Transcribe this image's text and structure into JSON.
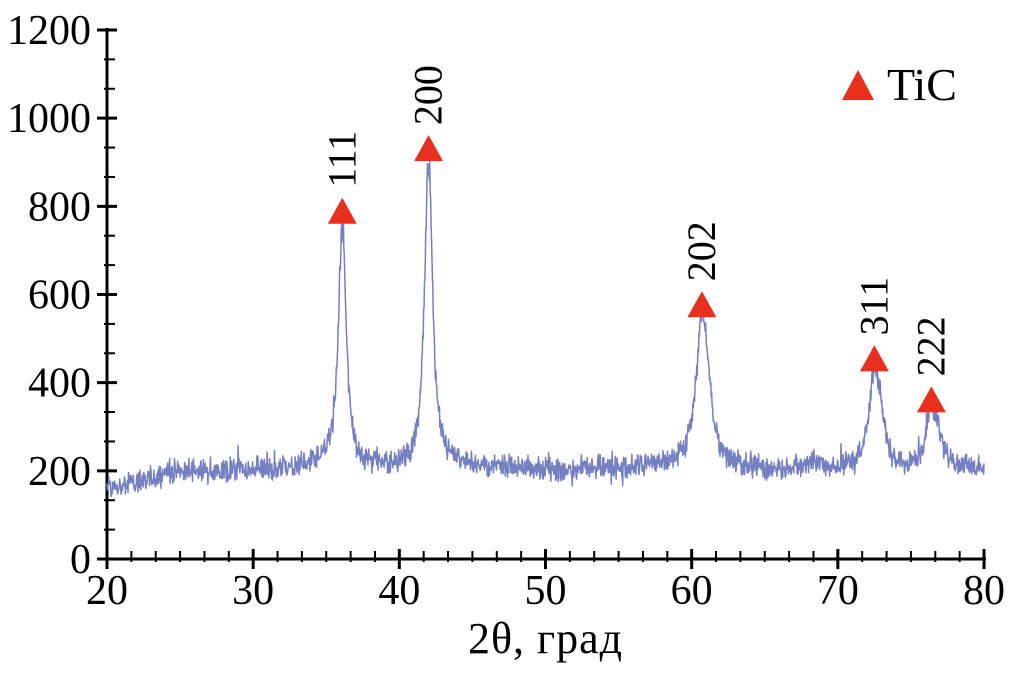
{
  "figure": {
    "background": "#ffffff"
  },
  "chart_data": {
    "type": "line",
    "title": "",
    "xlabel": "2θ, град",
    "ylabel": "",
    "xlim": [
      20,
      80
    ],
    "ylim": [
      0,
      1200
    ],
    "x_major_ticks": [
      20,
      30,
      40,
      50,
      60,
      70,
      80
    ],
    "x_minor_divisions": 6,
    "y_major_ticks": [
      0,
      200,
      400,
      600,
      800,
      1000,
      1200
    ],
    "y_minor_divisions": 3,
    "grid": false,
    "axis_color": "#000000",
    "tick_label_color": "#000000",
    "series": [
      {
        "name": "TiC",
        "line_color": "#7580c2",
        "description": "XRD pattern: noisy background of about 165-215 counts with TiC diffraction peaks",
        "background": {
          "start_intensity": 163,
          "plateau_intensity": 205
        },
        "noise_amplitude": 18,
        "peaks": [
          {
            "label": "111",
            "two_theta": 36.1,
            "peak_intensity": 755,
            "marker_intensity": 790,
            "hwhm": 0.32
          },
          {
            "label": "200",
            "two_theta": 42.0,
            "peak_intensity": 915,
            "marker_intensity": 932,
            "hwhm": 0.33
          },
          {
            "label": "202",
            "two_theta": 60.7,
            "peak_intensity": 545,
            "marker_intensity": 578,
            "hwhm": 0.48
          },
          {
            "label": "311",
            "two_theta": 72.5,
            "peak_intensity": 410,
            "marker_intensity": 455,
            "hwhm": 0.42
          },
          {
            "label": "222",
            "two_theta": 76.4,
            "peak_intensity": 335,
            "marker_intensity": 362,
            "hwhm": 0.45
          }
        ],
        "shoulder_peaks": [
          {
            "two_theta": 61.15,
            "height": 60,
            "hwhm": 0.35
          },
          {
            "two_theta": 72.95,
            "height": 70,
            "hwhm": 0.3
          },
          {
            "two_theta": 76.85,
            "height": 45,
            "hwhm": 0.3
          }
        ]
      }
    ],
    "legend": {
      "label": "TiC",
      "marker": "triangle",
      "marker_color": "#e9301f",
      "position": "top-right"
    }
  }
}
